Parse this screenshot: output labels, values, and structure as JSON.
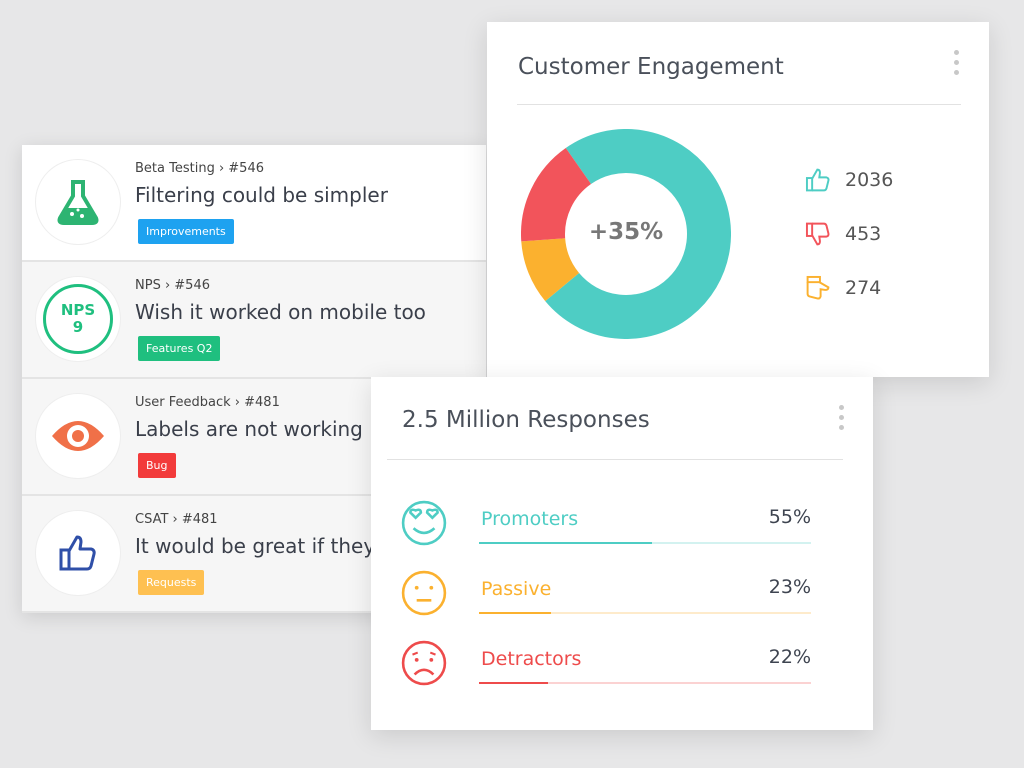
{
  "feedback": [
    {
      "meta": "Beta Testing › #546",
      "title": "Filtering could be simpler",
      "tag": "Improvements",
      "tag_color": "#1ea2f0",
      "icon": "flask-icon"
    },
    {
      "meta": "NPS › #546",
      "title": "Wish it worked on mobile too",
      "tag": "Features Q2",
      "tag_color": "#1fbf7f",
      "icon": "nps-badge",
      "nps_label": "NPS",
      "nps_score": "9"
    },
    {
      "meta": "User Feedback › #481",
      "title": "Labels are not working",
      "tag": "Bug",
      "tag_color": "#f23b3b",
      "icon": "eye-icon"
    },
    {
      "meta": "CSAT › #481",
      "title": "It would be great if they",
      "tag": "Requests",
      "tag_color": "#fec051",
      "icon": "thumbs-up-icon"
    }
  ],
  "engagement": {
    "title": "Customer Engagement",
    "center": "+35%",
    "stats": [
      {
        "icon": "thumbs-up-icon",
        "value": "2036",
        "color": "#4ecdc4"
      },
      {
        "icon": "thumbs-down-icon",
        "value": "453",
        "color": "#f2545b"
      },
      {
        "icon": "thumbs-sideways-icon",
        "value": "274",
        "color": "#fbb12f"
      }
    ],
    "segments": [
      {
        "value": 2036,
        "color": "#4ecdc4"
      },
      {
        "value": 274,
        "color": "#fbb12f"
      },
      {
        "value": 453,
        "color": "#f2545b"
      }
    ]
  },
  "responses": {
    "title": "2.5 Million Responses",
    "items": [
      {
        "label": "Promoters",
        "pct": "55%",
        "value": 55,
        "color": "#4ecdc4",
        "icon": "heart-eyes-face-icon"
      },
      {
        "label": "Passive",
        "pct": "23%",
        "value": 23,
        "color": "#fbb12f",
        "icon": "neutral-face-icon"
      },
      {
        "label": "Detractors",
        "pct": "22%",
        "value": 22,
        "color": "#ee4b4b",
        "icon": "sad-face-icon"
      }
    ]
  }
}
